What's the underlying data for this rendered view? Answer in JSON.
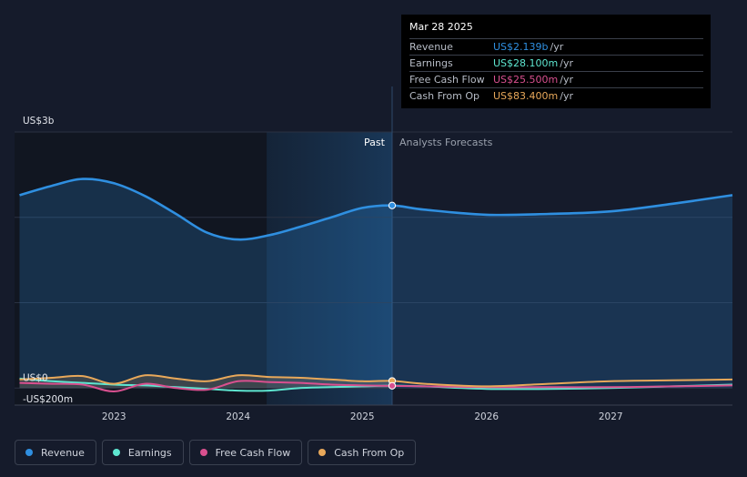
{
  "tooltip": {
    "date": "Mar 28 2025",
    "rows": [
      {
        "label": "Revenue",
        "value": "US$2.139b",
        "unit": "/yr",
        "color": "#2f8fe0"
      },
      {
        "label": "Earnings",
        "value": "US$28.100m",
        "unit": "/yr",
        "color": "#5ee6d0"
      },
      {
        "label": "Free Cash Flow",
        "value": "US$25.500m",
        "unit": "/yr",
        "color": "#d9508f"
      },
      {
        "label": "Cash From Op",
        "value": "US$83.400m",
        "unit": "/yr",
        "color": "#e8a85a"
      }
    ]
  },
  "legend": [
    {
      "label": "Revenue",
      "color": "#2f8fe0"
    },
    {
      "label": "Earnings",
      "color": "#5ee6d0"
    },
    {
      "label": "Free Cash Flow",
      "color": "#d9508f"
    },
    {
      "label": "Cash From Op",
      "color": "#e8a85a"
    }
  ],
  "chart_data": {
    "type": "line",
    "y_unit": "US$ millions",
    "ylim": [
      -200,
      3000
    ],
    "y_tick_labels": [
      {
        "value": 3000,
        "label": "US$3b"
      },
      {
        "value": 0,
        "label": "US$0"
      },
      {
        "value": -200,
        "label": "-US$200m"
      }
    ],
    "x_tick_labels": [
      "2023",
      "2024",
      "2025",
      "2026",
      "2027"
    ],
    "x_range": [
      2022.2,
      2027.98
    ],
    "past_label": "Past",
    "forecast_label": "Analysts Forecasts",
    "past_split": 2025.24,
    "shade_start": 2024.23,
    "grid": true,
    "series": [
      {
        "name": "Revenue",
        "color": "#2f8fe0",
        "points": [
          [
            2022.24,
            2260
          ],
          [
            2022.5,
            2370
          ],
          [
            2022.75,
            2450
          ],
          [
            2023.0,
            2400
          ],
          [
            2023.25,
            2250
          ],
          [
            2023.5,
            2040
          ],
          [
            2023.75,
            1820
          ],
          [
            2024.0,
            1740
          ],
          [
            2024.25,
            1790
          ],
          [
            2024.5,
            1890
          ],
          [
            2024.75,
            2000
          ],
          [
            2025.0,
            2110
          ],
          [
            2025.24,
            2139
          ],
          [
            2025.5,
            2090
          ],
          [
            2026.0,
            2030
          ],
          [
            2026.5,
            2040
          ],
          [
            2027.0,
            2070
          ],
          [
            2027.5,
            2160
          ],
          [
            2027.98,
            2260
          ]
        ]
      },
      {
        "name": "Earnings",
        "color": "#5ee6d0",
        "points": [
          [
            2022.24,
            110
          ],
          [
            2022.5,
            80
          ],
          [
            2022.75,
            60
          ],
          [
            2023.0,
            40
          ],
          [
            2023.25,
            30
          ],
          [
            2023.5,
            10
          ],
          [
            2023.75,
            -10
          ],
          [
            2024.0,
            -30
          ],
          [
            2024.25,
            -30
          ],
          [
            2024.5,
            0
          ],
          [
            2024.75,
            10
          ],
          [
            2025.0,
            20
          ],
          [
            2025.24,
            28.1
          ],
          [
            2025.5,
            20
          ],
          [
            2026.0,
            -10
          ],
          [
            2026.5,
            -10
          ],
          [
            2027.0,
            0
          ],
          [
            2027.5,
            20
          ],
          [
            2027.98,
            40
          ]
        ]
      },
      {
        "name": "Free Cash Flow",
        "color": "#d9508f",
        "points": [
          [
            2022.24,
            60
          ],
          [
            2022.5,
            50
          ],
          [
            2022.75,
            40
          ],
          [
            2023.0,
            -40
          ],
          [
            2023.25,
            50
          ],
          [
            2023.5,
            0
          ],
          [
            2023.75,
            -20
          ],
          [
            2024.0,
            80
          ],
          [
            2024.25,
            70
          ],
          [
            2024.5,
            60
          ],
          [
            2024.75,
            40
          ],
          [
            2025.0,
            30
          ],
          [
            2025.24,
            25.5
          ],
          [
            2025.5,
            20
          ],
          [
            2026.0,
            10
          ],
          [
            2026.5,
            10
          ],
          [
            2027.0,
            10
          ],
          [
            2027.5,
            20
          ],
          [
            2027.98,
            30
          ]
        ]
      },
      {
        "name": "Cash From Op",
        "color": "#e8a85a",
        "points": [
          [
            2022.24,
            100
          ],
          [
            2022.5,
            120
          ],
          [
            2022.75,
            140
          ],
          [
            2023.0,
            50
          ],
          [
            2023.25,
            150
          ],
          [
            2023.5,
            110
          ],
          [
            2023.75,
            80
          ],
          [
            2024.0,
            150
          ],
          [
            2024.25,
            130
          ],
          [
            2024.5,
            120
          ],
          [
            2024.75,
            100
          ],
          [
            2025.0,
            80
          ],
          [
            2025.24,
            83.4
          ],
          [
            2025.5,
            50
          ],
          [
            2026.0,
            20
          ],
          [
            2026.5,
            50
          ],
          [
            2027.0,
            80
          ],
          [
            2027.5,
            90
          ],
          [
            2027.98,
            100
          ]
        ]
      }
    ]
  }
}
